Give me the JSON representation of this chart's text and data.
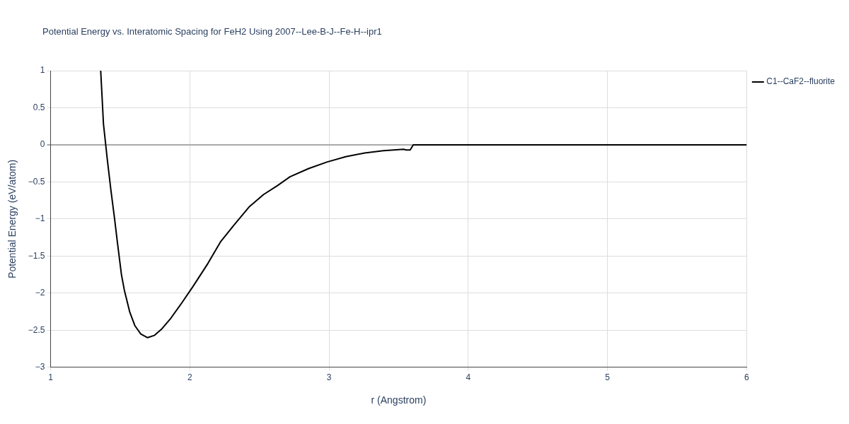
{
  "chart_data": {
    "type": "line",
    "title": "Potential Energy vs. Interatomic Spacing for FeH2 Using 2007--Lee-B-J--Fe-H--ipr1",
    "xlabel": "r (Angstrom)",
    "ylabel": "Potential Energy (eV/atom)",
    "xlim": [
      1,
      6
    ],
    "xticks": [
      1,
      2,
      3,
      4,
      5,
      6
    ],
    "ylim": [
      -3,
      1
    ],
    "yticks": [
      {
        "value": -3,
        "label": "−3"
      },
      {
        "value": -2.5,
        "label": "−2.5"
      },
      {
        "value": -2,
        "label": "−2"
      },
      {
        "value": -1.5,
        "label": "−1.5"
      },
      {
        "value": -1,
        "label": "−1"
      },
      {
        "value": -0.5,
        "label": "−0.5"
      },
      0,
      0.5,
      1
    ],
    "grid": true,
    "legend": "top right",
    "marker": "none",
    "line_style": "solid",
    "series": [
      {
        "name": "C1--CaF2--fluorite",
        "color": "#000000",
        "x": [
          1.36,
          1.38,
          1.407,
          1.434,
          1.46,
          1.477,
          1.509,
          1.53,
          1.568,
          1.606,
          1.648,
          1.697,
          1.745,
          1.8,
          1.863,
          1.943,
          2.023,
          2.13,
          2.22,
          2.318,
          2.425,
          2.53,
          2.63,
          2.72,
          2.854,
          2.988,
          3.12,
          3.256,
          3.39,
          3.535,
          3.556,
          3.583,
          3.605,
          6
        ],
        "values": [
          1.0,
          0.28,
          -0.19,
          -0.62,
          -1.0,
          -1.27,
          -1.75,
          -1.96,
          -2.25,
          -2.44,
          -2.55,
          -2.6,
          -2.57,
          -2.48,
          -2.34,
          -2.13,
          -1.91,
          -1.6,
          -1.31,
          -1.08,
          -0.84,
          -0.67,
          -0.55,
          -0.43,
          -0.32,
          -0.23,
          -0.16,
          -0.11,
          -0.08,
          -0.06,
          -0.07,
          -0.07,
          0,
          0
        ]
      }
    ]
  }
}
